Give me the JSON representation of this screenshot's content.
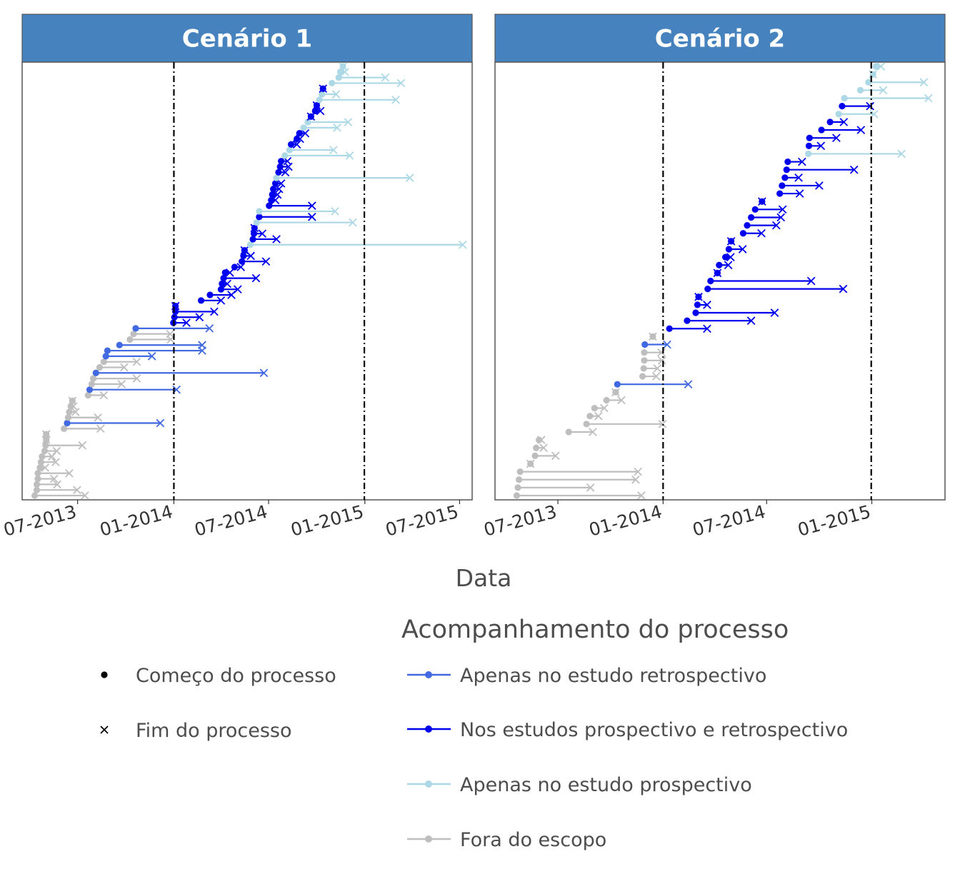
{
  "chart_data": {
    "type": "dumbbell",
    "x_axis_label": "Data",
    "legend": {
      "shape_entries": [
        {
          "label": "Começo do processo",
          "symbol": "point"
        },
        {
          "label": "Fim do processo",
          "symbol": "cross"
        }
      ],
      "color_title": "Acompanhamento do processo",
      "color_entries": [
        {
          "key": "retro",
          "label": "Apenas no estudo retrospectivo",
          "color": "#4169E1"
        },
        {
          "key": "both",
          "label": "Nos estudos prospectivo e retrospectivo",
          "color": "#0000EE"
        },
        {
          "key": "prosp",
          "label": "Apenas no estudo prospectivo",
          "color": "#ADD8E6"
        },
        {
          "key": "out",
          "label": "Fora do escopo",
          "color": "#BEBEBE"
        }
      ]
    },
    "panels": [
      {
        "title": "Cenário 1",
        "x_range": [
          "2013-03-17",
          "2015-07-25"
        ],
        "x_ticks": [
          {
            "label": "07-2013",
            "date": "2013-07-01"
          },
          {
            "label": "01-2014",
            "date": "2014-01-01"
          },
          {
            "label": "07-2014",
            "date": "2014-07-01"
          },
          {
            "label": "01-2015",
            "date": "2015-01-01"
          },
          {
            "label": "07-2015",
            "date": "2015-07-01"
          }
        ],
        "vlines": [
          "2014-01-01",
          "2014-12-31"
        ],
        "rows": [
          {
            "start": "2013-04-10",
            "end": "2013-07-15",
            "cat": "out"
          },
          {
            "start": "2013-04-14",
            "end": "2013-06-30",
            "cat": "out"
          },
          {
            "start": "2013-04-14",
            "end": "2013-05-23",
            "cat": "out"
          },
          {
            "start": "2013-04-16",
            "end": "2013-05-17",
            "cat": "out"
          },
          {
            "start": "2013-04-16",
            "end": "2013-06-15",
            "cat": "out"
          },
          {
            "start": "2013-04-20",
            "end": "2013-04-30",
            "cat": "out"
          },
          {
            "start": "2013-04-22",
            "end": "2013-05-20",
            "cat": "out"
          },
          {
            "start": "2013-04-24",
            "end": "2013-05-13",
            "cat": "out"
          },
          {
            "start": "2013-04-29",
            "end": "2013-05-22",
            "cat": "out"
          },
          {
            "start": "2013-05-01",
            "end": "2013-07-10",
            "cat": "out"
          },
          {
            "start": "2013-05-02",
            "end": "2013-05-02",
            "cat": "out"
          },
          {
            "start": "2013-05-02",
            "end": "2013-05-02",
            "cat": "out"
          },
          {
            "start": "2013-06-05",
            "end": "2013-08-14",
            "cat": "out"
          },
          {
            "start": "2013-06-11",
            "end": "2013-12-06",
            "cat": "retro"
          },
          {
            "start": "2013-06-13",
            "end": "2013-08-09",
            "cat": "out"
          },
          {
            "start": "2013-06-15",
            "end": "2013-06-27",
            "cat": "out"
          },
          {
            "start": "2013-06-18",
            "end": "2013-06-23",
            "cat": "out"
          },
          {
            "start": "2013-06-21",
            "end": "2013-06-21",
            "cat": "out"
          },
          {
            "start": "2013-07-21",
            "end": "2013-08-20",
            "cat": "out"
          },
          {
            "start": "2013-07-24",
            "end": "2014-01-06",
            "cat": "retro"
          },
          {
            "start": "2013-07-28",
            "end": "2013-09-23",
            "cat": "out"
          },
          {
            "start": "2013-07-31",
            "end": "2013-10-22",
            "cat": "out"
          },
          {
            "start": "2013-08-05",
            "end": "2014-06-22",
            "cat": "retro"
          },
          {
            "start": "2013-08-12",
            "end": "2013-09-28",
            "cat": "out"
          },
          {
            "start": "2013-08-20",
            "end": "2013-10-22",
            "cat": "out"
          },
          {
            "start": "2013-08-24",
            "end": "2013-11-20",
            "cat": "retro"
          },
          {
            "start": "2013-08-27",
            "end": "2014-02-24",
            "cat": "retro"
          },
          {
            "start": "2013-09-19",
            "end": "2014-02-24",
            "cat": "retro"
          },
          {
            "start": "2013-10-09",
            "end": "2013-12-26",
            "cat": "out"
          },
          {
            "start": "2013-10-16",
            "end": "2013-12-25",
            "cat": "out"
          },
          {
            "start": "2013-10-20",
            "end": "2014-03-10",
            "cat": "retro"
          },
          {
            "start": "2013-12-31",
            "end": "2014-01-25",
            "cat": "both"
          },
          {
            "start": "2014-01-02",
            "end": "2014-02-19",
            "cat": "both"
          },
          {
            "start": "2014-01-04",
            "end": "2014-03-19",
            "cat": "both"
          },
          {
            "start": "2014-01-04",
            "end": "2014-01-04",
            "cat": "both"
          },
          {
            "start": "2014-02-22",
            "end": "2014-04-01",
            "cat": "both"
          },
          {
            "start": "2014-03-11",
            "end": "2014-04-21",
            "cat": "both"
          },
          {
            "start": "2014-04-01",
            "end": "2014-05-03",
            "cat": "both"
          },
          {
            "start": "2014-04-03",
            "end": "2014-04-13",
            "cat": "both"
          },
          {
            "start": "2014-04-06",
            "end": "2014-06-07",
            "cat": "both"
          },
          {
            "start": "2014-04-09",
            "end": "2014-04-18",
            "cat": "both"
          },
          {
            "start": "2014-04-27",
            "end": "2014-05-09",
            "cat": "both"
          },
          {
            "start": "2014-05-11",
            "end": "2014-06-26",
            "cat": "both"
          },
          {
            "start": "2014-05-14",
            "end": "2014-05-28",
            "cat": "both"
          },
          {
            "start": "2014-05-16",
            "end": "2014-05-16",
            "cat": "both"
          },
          {
            "start": "2014-05-27",
            "end": "2015-07-07",
            "cat": "prosp"
          },
          {
            "start": "2014-06-01",
            "end": "2014-07-16",
            "cat": "both"
          },
          {
            "start": "2014-06-03",
            "end": "2014-06-19",
            "cat": "both"
          },
          {
            "start": "2014-06-04",
            "end": "2014-06-04",
            "cat": "both"
          },
          {
            "start": "2014-06-08",
            "end": "2014-12-09",
            "cat": "prosp"
          },
          {
            "start": "2014-06-13",
            "end": "2014-09-22",
            "cat": "both"
          },
          {
            "start": "2014-06-13",
            "end": "2014-11-05",
            "cat": "prosp"
          },
          {
            "start": "2014-07-02",
            "end": "2014-09-22",
            "cat": "both"
          },
          {
            "start": "2014-07-06",
            "end": "2014-07-14",
            "cat": "both"
          },
          {
            "start": "2014-07-08",
            "end": "2014-07-18",
            "cat": "both"
          },
          {
            "start": "2014-07-10",
            "end": "2014-07-21",
            "cat": "both"
          },
          {
            "start": "2014-07-14",
            "end": "2014-07-25",
            "cat": "both"
          },
          {
            "start": "2014-07-16",
            "end": "2015-03-28",
            "cat": "prosp"
          },
          {
            "start": "2014-07-20",
            "end": "2014-08-02",
            "cat": "both"
          },
          {
            "start": "2014-07-23",
            "end": "2014-08-08",
            "cat": "both"
          },
          {
            "start": "2014-07-25",
            "end": "2014-08-06",
            "cat": "both"
          },
          {
            "start": "2014-08-01",
            "end": "2014-12-03",
            "cat": "prosp"
          },
          {
            "start": "2014-08-10",
            "end": "2014-11-02",
            "cat": "prosp"
          },
          {
            "start": "2014-08-13",
            "end": "2014-08-24",
            "cat": "both"
          },
          {
            "start": "2014-08-24",
            "end": "2014-08-30",
            "cat": "both"
          },
          {
            "start": "2014-08-29",
            "end": "2014-09-09",
            "cat": "both"
          },
          {
            "start": "2014-09-06",
            "end": "2014-11-09",
            "cat": "prosp"
          },
          {
            "start": "2014-09-14",
            "end": "2014-11-30",
            "cat": "prosp"
          },
          {
            "start": "2014-09-20",
            "end": "2014-09-20",
            "cat": "both"
          },
          {
            "start": "2014-09-28",
            "end": "2014-10-08",
            "cat": "both"
          },
          {
            "start": "2014-10-01",
            "end": "2014-10-01",
            "cat": "both"
          },
          {
            "start": "2014-10-06",
            "end": "2015-03-01",
            "cat": "prosp"
          },
          {
            "start": "2014-10-11",
            "end": "2014-11-07",
            "cat": "prosp"
          },
          {
            "start": "2014-10-13",
            "end": "2014-10-13",
            "cat": "both"
          },
          {
            "start": "2014-10-30",
            "end": "2015-03-11",
            "cat": "prosp"
          },
          {
            "start": "2014-11-12",
            "end": "2015-02-09",
            "cat": "prosp"
          },
          {
            "start": "2014-11-15",
            "end": "2014-11-24",
            "cat": "prosp"
          },
          {
            "start": "2014-11-20",
            "end": "2014-11-20",
            "cat": "prosp"
          }
        ]
      },
      {
        "title": "Cenário 2",
        "x_range": [
          "2013-03-13",
          "2015-05-09"
        ],
        "x_ticks": [
          {
            "label": "07-2013",
            "date": "2013-07-01"
          },
          {
            "label": "01-2014",
            "date": "2014-01-01"
          },
          {
            "label": "07-2014",
            "date": "2014-07-01"
          },
          {
            "label": "01-2015",
            "date": "2015-01-01"
          }
        ],
        "vlines": [
          "2014-01-01",
          "2014-12-31"
        ],
        "rows": [
          {
            "start": "2013-04-20",
            "end": "2013-11-24",
            "cat": "out"
          },
          {
            "start": "2013-04-22",
            "end": "2013-08-27",
            "cat": "out"
          },
          {
            "start": "2013-04-24",
            "end": "2013-11-14",
            "cat": "out"
          },
          {
            "start": "2013-04-26",
            "end": "2013-11-18",
            "cat": "out"
          },
          {
            "start": "2013-05-14",
            "end": "2013-05-14",
            "cat": "out"
          },
          {
            "start": "2013-05-22",
            "end": "2013-06-27",
            "cat": "out"
          },
          {
            "start": "2013-05-24",
            "end": "2013-06-06",
            "cat": "out"
          },
          {
            "start": "2013-05-29",
            "end": "2013-06-02",
            "cat": "out"
          },
          {
            "start": "2013-07-20",
            "end": "2013-08-31",
            "cat": "out"
          },
          {
            "start": "2013-08-20",
            "end": "2013-12-31",
            "cat": "out"
          },
          {
            "start": "2013-08-26",
            "end": "2013-09-10",
            "cat": "out"
          },
          {
            "start": "2013-09-03",
            "end": "2013-09-20",
            "cat": "out"
          },
          {
            "start": "2013-09-24",
            "end": "2013-10-20",
            "cat": "out"
          },
          {
            "start": "2013-10-10",
            "end": "2013-10-10",
            "cat": "out"
          },
          {
            "start": "2013-10-13",
            "end": "2014-02-14",
            "cat": "retro"
          },
          {
            "start": "2013-11-26",
            "end": "2013-12-20",
            "cat": "out"
          },
          {
            "start": "2013-11-28",
            "end": "2013-12-22",
            "cat": "out"
          },
          {
            "start": "2013-11-29",
            "end": "2013-12-30",
            "cat": "out"
          },
          {
            "start": "2013-11-29",
            "end": "2013-12-29",
            "cat": "out"
          },
          {
            "start": "2013-11-30",
            "end": "2014-01-08",
            "cat": "retro"
          },
          {
            "start": "2013-12-14",
            "end": "2013-12-14",
            "cat": "out"
          },
          {
            "start": "2014-01-12",
            "end": "2014-03-19",
            "cat": "both"
          },
          {
            "start": "2014-02-12",
            "end": "2014-06-04",
            "cat": "both"
          },
          {
            "start": "2014-02-27",
            "end": "2014-07-15",
            "cat": "both"
          },
          {
            "start": "2014-03-02",
            "end": "2014-03-19",
            "cat": "both"
          },
          {
            "start": "2014-03-04",
            "end": "2014-03-04",
            "cat": "both"
          },
          {
            "start": "2014-03-20",
            "end": "2014-11-12",
            "cat": "both"
          },
          {
            "start": "2014-03-25",
            "end": "2014-09-17",
            "cat": "both"
          },
          {
            "start": "2014-04-06",
            "end": "2014-04-06",
            "cat": "both"
          },
          {
            "start": "2014-04-09",
            "end": "2014-04-25",
            "cat": "both"
          },
          {
            "start": "2014-04-20",
            "end": "2014-04-29",
            "cat": "both"
          },
          {
            "start": "2014-04-26",
            "end": "2014-05-20",
            "cat": "both"
          },
          {
            "start": "2014-04-30",
            "end": "2014-04-30",
            "cat": "both"
          },
          {
            "start": "2014-05-21",
            "end": "2014-06-22",
            "cat": "both"
          },
          {
            "start": "2014-05-28",
            "end": "2014-07-18",
            "cat": "both"
          },
          {
            "start": "2014-06-04",
            "end": "2014-07-26",
            "cat": "both"
          },
          {
            "start": "2014-06-11",
            "end": "2014-07-29",
            "cat": "both"
          },
          {
            "start": "2014-06-23",
            "end": "2014-06-23",
            "cat": "both"
          },
          {
            "start": "2014-07-24",
            "end": "2014-08-28",
            "cat": "both"
          },
          {
            "start": "2014-07-28",
            "end": "2014-10-01",
            "cat": "both"
          },
          {
            "start": "2014-08-02",
            "end": "2014-08-26",
            "cat": "both"
          },
          {
            "start": "2014-08-05",
            "end": "2014-12-01",
            "cat": "both"
          },
          {
            "start": "2014-08-07",
            "end": "2014-09-01",
            "cat": "both"
          },
          {
            "start": "2014-09-12",
            "end": "2015-02-22",
            "cat": "prosp"
          },
          {
            "start": "2014-09-13",
            "end": "2014-10-04",
            "cat": "both"
          },
          {
            "start": "2014-09-14",
            "end": "2014-10-31",
            "cat": "both"
          },
          {
            "start": "2014-10-05",
            "end": "2014-12-13",
            "cat": "both"
          },
          {
            "start": "2014-10-20",
            "end": "2014-11-13",
            "cat": "both"
          },
          {
            "start": "2014-11-04",
            "end": "2015-01-05",
            "cat": "prosp"
          },
          {
            "start": "2014-11-10",
            "end": "2014-12-29",
            "cat": "both"
          },
          {
            "start": "2014-11-14",
            "end": "2015-04-10",
            "cat": "prosp"
          },
          {
            "start": "2014-12-12",
            "end": "2015-01-21",
            "cat": "prosp"
          },
          {
            "start": "2014-12-26",
            "end": "2015-04-02",
            "cat": "prosp"
          },
          {
            "start": "2015-01-03",
            "end": "2015-01-03",
            "cat": "prosp"
          },
          {
            "start": "2015-01-08",
            "end": "2015-01-17",
            "cat": "prosp"
          }
        ]
      }
    ]
  }
}
